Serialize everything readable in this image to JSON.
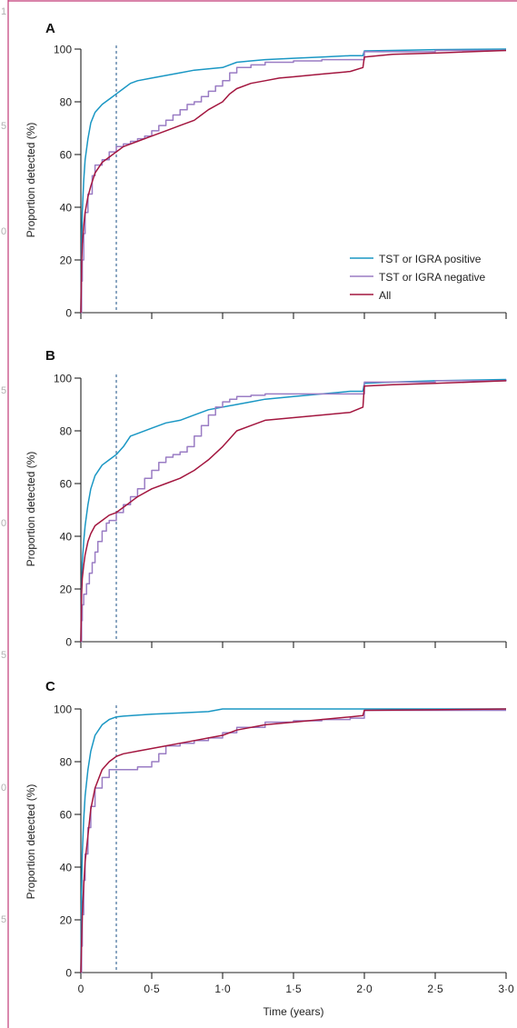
{
  "margin_numbers": [
    "1",
    "5",
    "0",
    "5",
    "0",
    "5",
    "0",
    "5"
  ],
  "colors": {
    "frame": "#c23b77",
    "axis": "#222222",
    "dashed": "#2f5f8f",
    "series_pos": "#1a97c4",
    "series_neg": "#9a7cc4",
    "series_all": "#a3163f"
  },
  "chart_data": [
    {
      "type": "line",
      "panel_label": "A",
      "xlabel": "",
      "ylabel": "Proportion detected (%)",
      "xlim": [
        0,
        3.0
      ],
      "ylim": [
        0,
        100
      ],
      "yticks": [
        0,
        20,
        40,
        60,
        80,
        100
      ],
      "ytick_labels": [
        "0",
        "20",
        "40",
        "60",
        "80",
        "100"
      ],
      "xticks": [
        0,
        0.5,
        1.0,
        1.5,
        2.0,
        2.5,
        3.0
      ],
      "xtick_labels": [],
      "reference_line_x": 0.25,
      "legend": {
        "position": "bottom-right"
      },
      "series": [
        {
          "name": "TST or IGRA positive",
          "step": false,
          "x": [
            0,
            0.005,
            0.01,
            0.02,
            0.03,
            0.05,
            0.07,
            0.1,
            0.15,
            0.2,
            0.25,
            0.3,
            0.35,
            0.4,
            0.5,
            0.6,
            0.7,
            0.8,
            0.9,
            1.0,
            1.1,
            1.2,
            1.3,
            1.5,
            1.7,
            1.9,
            1.99,
            2.0,
            2.2,
            2.5,
            3.0
          ],
          "y": [
            0,
            25,
            38,
            50,
            58,
            66,
            72,
            76,
            79,
            81,
            83,
            85,
            87,
            88,
            89,
            90,
            91,
            92,
            92.5,
            93,
            95,
            95.5,
            96,
            96.5,
            97,
            97.5,
            97.5,
            99.3,
            99.5,
            99.8,
            100
          ]
        },
        {
          "name": "TST or IGRA negative",
          "step": true,
          "x": [
            0,
            0.005,
            0.01,
            0.02,
            0.03,
            0.05,
            0.08,
            0.1,
            0.15,
            0.2,
            0.25,
            0.3,
            0.35,
            0.4,
            0.45,
            0.5,
            0.55,
            0.6,
            0.65,
            0.7,
            0.75,
            0.8,
            0.85,
            0.9,
            0.95,
            1.0,
            1.05,
            1.1,
            1.2,
            1.3,
            1.5,
            1.7,
            1.99,
            2.0,
            2.5,
            3.0
          ],
          "y": [
            0,
            12,
            20,
            30,
            38,
            45,
            52,
            56,
            58,
            61,
            63,
            64,
            65,
            66,
            67,
            69,
            71,
            73,
            75,
            77,
            79,
            80,
            82,
            84,
            86,
            88,
            91,
            93,
            94,
            95,
            95.5,
            96,
            96,
            99,
            99.5,
            99.5
          ]
        },
        {
          "name": "All",
          "step": false,
          "x": [
            0,
            0.005,
            0.01,
            0.02,
            0.03,
            0.05,
            0.07,
            0.1,
            0.15,
            0.2,
            0.25,
            0.3,
            0.35,
            0.4,
            0.5,
            0.6,
            0.7,
            0.8,
            0.85,
            0.9,
            1.0,
            1.05,
            1.1,
            1.2,
            1.3,
            1.4,
            1.5,
            1.7,
            1.9,
            1.99,
            2.0,
            2.2,
            2.5,
            3.0
          ],
          "y": [
            0,
            18,
            26,
            33,
            38,
            44,
            48,
            53,
            57,
            59,
            61,
            63,
            64,
            65,
            67,
            69,
            71,
            73,
            75,
            77,
            80,
            83,
            85,
            87,
            88,
            89,
            89.5,
            90.5,
            91.5,
            93,
            97,
            98,
            98.5,
            99.5
          ]
        }
      ]
    },
    {
      "type": "line",
      "panel_label": "B",
      "xlabel": "",
      "ylabel": "Proportion detected (%)",
      "xlim": [
        0,
        3.0
      ],
      "ylim": [
        0,
        100
      ],
      "yticks": [
        0,
        20,
        40,
        60,
        80,
        100
      ],
      "ytick_labels": [
        "0",
        "20",
        "40",
        "60",
        "80",
        "100"
      ],
      "xticks": [
        0,
        0.5,
        1.0,
        1.5,
        2.0,
        2.5,
        3.0
      ],
      "xtick_labels": [],
      "reference_line_x": 0.25,
      "series": [
        {
          "name": "TST or IGRA positive",
          "step": false,
          "x": [
            0,
            0.005,
            0.01,
            0.02,
            0.03,
            0.05,
            0.07,
            0.1,
            0.15,
            0.2,
            0.25,
            0.3,
            0.35,
            0.4,
            0.5,
            0.6,
            0.7,
            0.8,
            0.9,
            1.0,
            1.1,
            1.2,
            1.3,
            1.5,
            1.7,
            1.9,
            1.99,
            2.0,
            2.2,
            2.5,
            3.0
          ],
          "y": [
            0,
            20,
            30,
            38,
            44,
            52,
            58,
            63,
            67,
            69,
            71,
            74,
            78,
            79,
            81,
            83,
            84,
            86,
            88,
            89,
            90,
            91,
            92,
            93,
            94,
            95,
            95,
            98,
            98.5,
            99,
            99.5
          ]
        },
        {
          "name": "TST or IGRA negative",
          "step": true,
          "x": [
            0,
            0.005,
            0.01,
            0.02,
            0.04,
            0.06,
            0.08,
            0.1,
            0.12,
            0.15,
            0.18,
            0.2,
            0.25,
            0.3,
            0.35,
            0.4,
            0.45,
            0.5,
            0.55,
            0.6,
            0.65,
            0.7,
            0.75,
            0.8,
            0.85,
            0.9,
            0.95,
            1.0,
            1.05,
            1.1,
            1.2,
            1.3,
            1.5,
            1.7,
            1.99,
            2.0,
            2.5,
            3.0
          ],
          "y": [
            0,
            8,
            14,
            18,
            22,
            26,
            30,
            34,
            38,
            42,
            45,
            46,
            49,
            52,
            55,
            58,
            62,
            65,
            68,
            70,
            71,
            72,
            74,
            78,
            82,
            86,
            89,
            91,
            92,
            93,
            93.5,
            94,
            94,
            94,
            94,
            98.5,
            99,
            99.5
          ]
        },
        {
          "name": "All",
          "step": false,
          "x": [
            0,
            0.005,
            0.01,
            0.02,
            0.03,
            0.05,
            0.07,
            0.1,
            0.15,
            0.2,
            0.25,
            0.3,
            0.35,
            0.4,
            0.5,
            0.6,
            0.7,
            0.8,
            0.85,
            0.9,
            1.0,
            1.05,
            1.1,
            1.2,
            1.3,
            1.5,
            1.7,
            1.9,
            1.99,
            2.0,
            2.2,
            2.5,
            3.0
          ],
          "y": [
            0,
            18,
            24,
            29,
            33,
            38,
            41,
            44,
            46,
            48,
            49,
            51,
            53,
            55,
            58,
            60,
            62,
            65,
            67,
            69,
            74,
            77,
            80,
            82,
            84,
            85,
            86,
            87,
            89,
            97,
            97.5,
            98,
            99
          ]
        }
      ]
    },
    {
      "type": "line",
      "panel_label": "C",
      "xlabel": "Time (years)",
      "ylabel": "Proportion detected (%)",
      "xlim": [
        0,
        3.0
      ],
      "ylim": [
        0,
        100
      ],
      "yticks": [
        0,
        20,
        40,
        60,
        80,
        100
      ],
      "ytick_labels": [
        "0",
        "20",
        "40",
        "60",
        "80",
        "100"
      ],
      "xticks": [
        0,
        0.5,
        1.0,
        1.5,
        2.0,
        2.5,
        3.0
      ],
      "xtick_labels": [
        "0",
        "0·5",
        "1·0",
        "1·5",
        "2·0",
        "2·5",
        "3·0"
      ],
      "reference_line_x": 0.25,
      "series": [
        {
          "name": "TST or IGRA positive",
          "step": false,
          "x": [
            0,
            0.005,
            0.01,
            0.02,
            0.03,
            0.05,
            0.07,
            0.1,
            0.15,
            0.2,
            0.25,
            0.3,
            0.5,
            0.7,
            0.9,
            1.0,
            1.5,
            2.0,
            2.5,
            3.0
          ],
          "y": [
            0,
            30,
            45,
            58,
            67,
            77,
            84,
            90,
            94,
            96,
            97,
            97.3,
            98,
            98.5,
            99,
            100,
            100,
            100,
            100,
            100
          ]
        },
        {
          "name": "TST or IGRA negative",
          "step": true,
          "x": [
            0,
            0.005,
            0.01,
            0.02,
            0.03,
            0.05,
            0.07,
            0.1,
            0.15,
            0.2,
            0.3,
            0.4,
            0.5,
            0.55,
            0.6,
            0.7,
            0.8,
            0.9,
            1.0,
            1.1,
            1.3,
            1.5,
            1.7,
            1.9,
            1.99,
            2.0,
            2.5,
            3.0
          ],
          "y": [
            0,
            10,
            22,
            35,
            45,
            55,
            63,
            70,
            74,
            77,
            77,
            78,
            80,
            83,
            86,
            87,
            88,
            89,
            91,
            93,
            95,
            95.5,
            96,
            96.5,
            96.5,
            99.5,
            99.5,
            99.5
          ]
        },
        {
          "name": "All",
          "step": false,
          "x": [
            0,
            0.005,
            0.01,
            0.02,
            0.03,
            0.05,
            0.07,
            0.1,
            0.15,
            0.2,
            0.25,
            0.3,
            0.4,
            0.5,
            0.6,
            0.7,
            0.8,
            0.9,
            1.0,
            1.1,
            1.3,
            1.5,
            1.7,
            1.9,
            1.99,
            2.0,
            2.5,
            3.0
          ],
          "y": [
            0,
            12,
            22,
            33,
            42,
            52,
            62,
            70,
            77,
            80,
            82,
            83,
            84,
            85,
            86,
            87,
            88,
            89,
            90,
            92,
            94,
            95,
            96,
            97,
            97.5,
            99.5,
            99.7,
            100
          ]
        }
      ]
    }
  ]
}
